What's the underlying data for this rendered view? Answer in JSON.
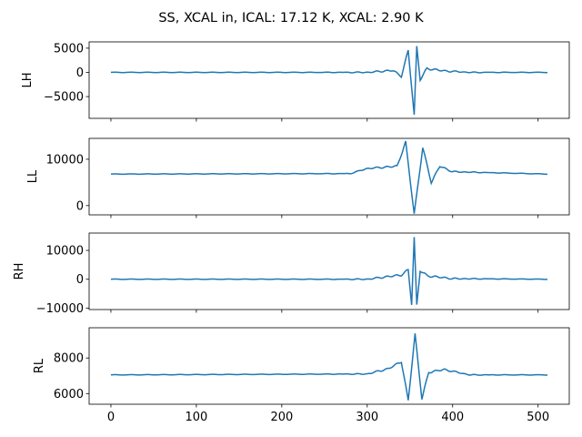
{
  "figure": {
    "suptitle": "SS, XCAL in, ICAL: 17.12 K, XCAL: 2.90 K"
  },
  "chart_data": {
    "type": "line",
    "title": "SS, XCAL in, ICAL: 17.12 K, XCAL: 2.90 K",
    "line_color": "#1f77b4",
    "shared_x": true,
    "xlim": [
      -25.5,
      536.5
    ],
    "x_ticks": [
      0,
      100,
      200,
      300,
      400,
      500
    ],
    "x_tick_labels": [
      "0",
      "100",
      "200",
      "300",
      "400",
      "500"
    ],
    "n_points": 512,
    "panels": [
      {
        "ylabel": "LH",
        "ylim": [
          -9500,
          6300
        ],
        "y_ticks": [
          -5000,
          0,
          5000
        ],
        "y_tick_labels": [
          "−5000",
          "0",
          "5000"
        ],
        "baseline": 0,
        "peak_x": 355,
        "key_points": [
          [
            0,
            0
          ],
          [
            300,
            0
          ],
          [
            330,
            400
          ],
          [
            340,
            -800
          ],
          [
            348,
            4500
          ],
          [
            352,
            -3000
          ],
          [
            355,
            -8800
          ],
          [
            358,
            5300
          ],
          [
            362,
            -1500
          ],
          [
            370,
            800
          ],
          [
            390,
            300
          ],
          [
            420,
            0
          ],
          [
            511,
            0
          ]
        ]
      },
      {
        "ylabel": "LL",
        "ylim": [
          -2000,
          14500
        ],
        "y_ticks": [
          0,
          10000
        ],
        "y_tick_labels": [
          "0",
          "10000"
        ],
        "baseline": 6800,
        "peak_x": 355,
        "key_points": [
          [
            0,
            6800
          ],
          [
            280,
            6900
          ],
          [
            300,
            8000
          ],
          [
            335,
            8500
          ],
          [
            345,
            13700
          ],
          [
            355,
            -1800
          ],
          [
            365,
            12500
          ],
          [
            375,
            5000
          ],
          [
            385,
            8500
          ],
          [
            400,
            7300
          ],
          [
            511,
            6800
          ]
        ]
      },
      {
        "ylabel": "RH",
        "ylim": [
          -10500,
          16000
        ],
        "y_ticks": [
          -10000,
          0,
          10000
        ],
        "y_tick_labels": [
          "−10000",
          "0",
          "10000"
        ],
        "baseline": 0,
        "peak_x": 355,
        "key_points": [
          [
            0,
            0
          ],
          [
            300,
            0
          ],
          [
            340,
            1500
          ],
          [
            348,
            3200
          ],
          [
            352,
            -8600
          ],
          [
            355,
            14500
          ],
          [
            358,
            -9000
          ],
          [
            362,
            3000
          ],
          [
            370,
            1200
          ],
          [
            400,
            200
          ],
          [
            511,
            0
          ]
        ]
      },
      {
        "ylabel": "RL",
        "ylim": [
          5400,
          9700
        ],
        "y_ticks": [
          6000,
          8000
        ],
        "y_tick_labels": [
          "6000",
          "8000"
        ],
        "baseline": 7050,
        "peak_x": 356,
        "key_points": [
          [
            0,
            7050
          ],
          [
            300,
            7100
          ],
          [
            325,
            7400
          ],
          [
            340,
            7800
          ],
          [
            348,
            5600
          ],
          [
            356,
            9350
          ],
          [
            364,
            5700
          ],
          [
            372,
            7200
          ],
          [
            390,
            7350
          ],
          [
            420,
            7050
          ],
          [
            511,
            7050
          ]
        ]
      }
    ]
  }
}
